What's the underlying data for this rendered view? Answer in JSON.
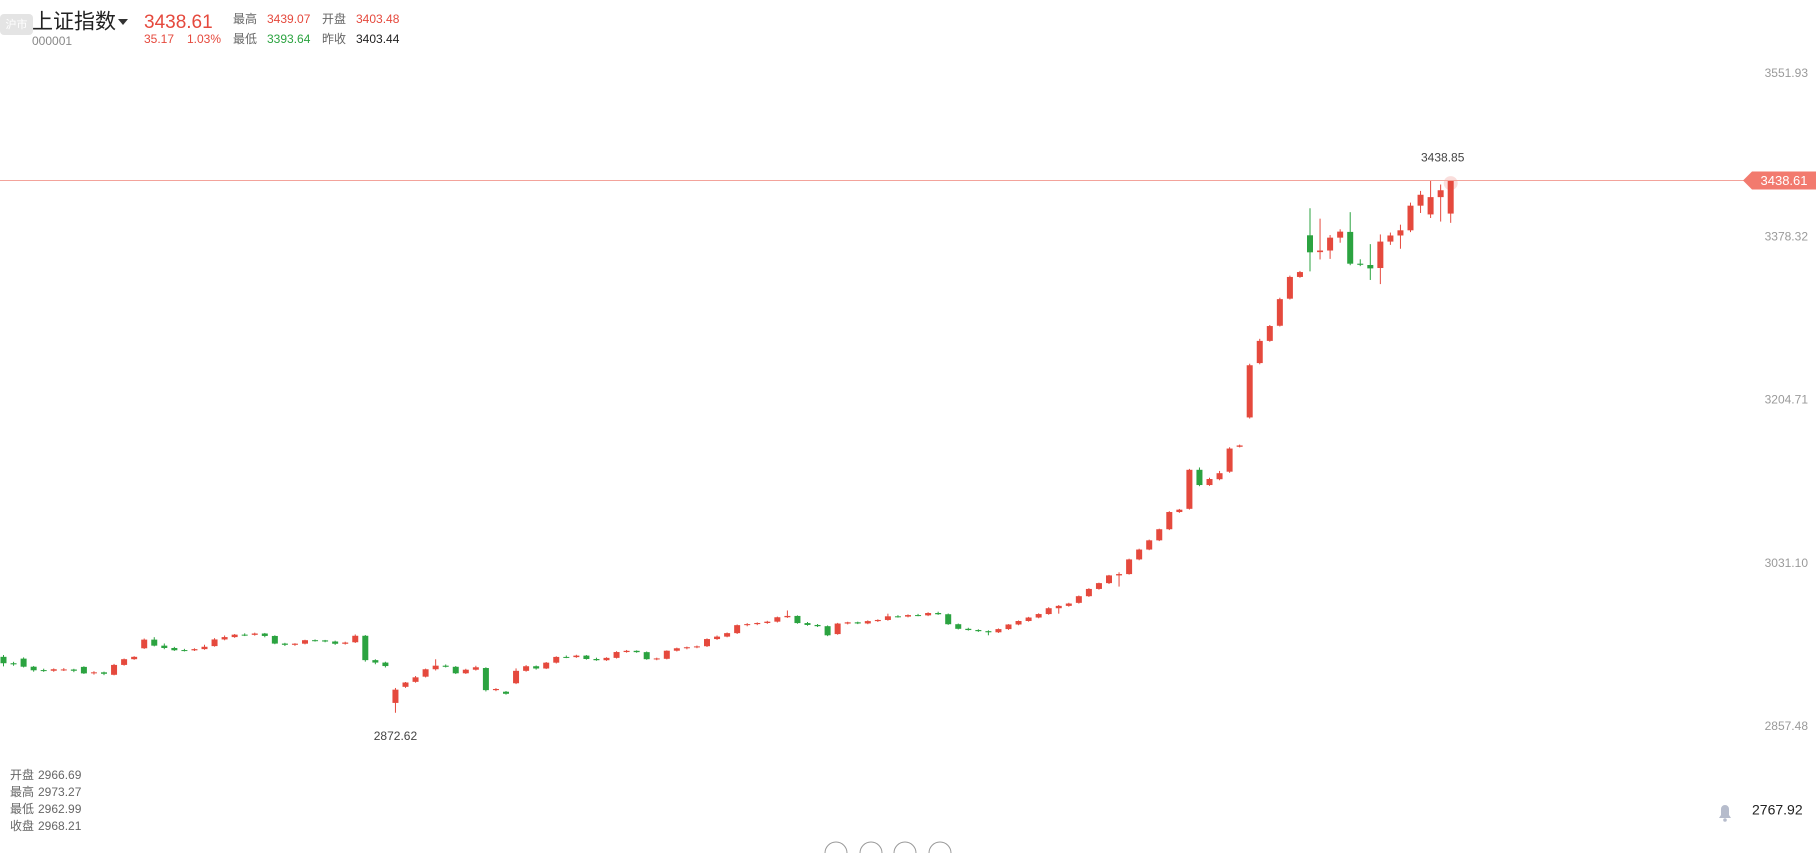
{
  "header": {
    "badge": "沪市",
    "name": "上证指数",
    "code": "000001",
    "price": "3438.61",
    "change": "35.17",
    "change_pct": "1.03%",
    "stats": [
      {
        "label": "最高",
        "value": "3439.07"
      },
      {
        "label": "开盘",
        "value": "3403.48"
      },
      {
        "label": "最低",
        "value": "3393.64"
      },
      {
        "label": "昨收",
        "value": "3403.44"
      }
    ]
  },
  "ohlc_info": [
    {
      "label": "开盘",
      "value": "2966.69"
    },
    {
      "label": "最高",
      "value": "2973.27"
    },
    {
      "label": "最低",
      "value": "2962.99"
    },
    {
      "label": "收盘",
      "value": "2968.21"
    }
  ],
  "bottom_value": "2767.92",
  "chart_data": {
    "type": "candlestick",
    "up_color": "#e5493d",
    "down_color": "#2ba340",
    "price_line_color": "#f3a39b",
    "ylim": [
      2790.48,
      3588.09
    ],
    "yticks": [
      2857.48,
      {
        "value": 3031.1,
        "label": "3031.10"
      },
      3204.71,
      3378.32,
      3551.93
    ],
    "candles": [
      [
        2932.1,
        2934.0,
        2922.0,
        2925.3
      ],
      [
        2925.3,
        2926.8,
        2922.6,
        2924.1
      ],
      [
        2930.2,
        2931.5,
        2920.8,
        2921.6
      ],
      [
        2921.6,
        2922.4,
        2916.3,
        2917.8
      ],
      [
        2918.0,
        2919.5,
        2916.1,
        2917.5
      ],
      [
        2917.3,
        2919.8,
        2916.2,
        2918.9
      ],
      [
        2918.4,
        2920.1,
        2917.0,
        2918.7
      ],
      [
        2918.6,
        2919.4,
        2915.8,
        2917.3
      ],
      [
        2921.4,
        2922.1,
        2913.9,
        2914.5
      ],
      [
        2914.9,
        2916.8,
        2913.2,
        2915.6
      ],
      [
        2915.6,
        2916.4,
        2912.7,
        2914.1
      ],
      [
        2913.0,
        2924.6,
        2912.4,
        2923.5
      ],
      [
        2923.5,
        2930.3,
        2922.7,
        2929.6
      ],
      [
        2929.6,
        2932.8,
        2928.9,
        2932.1
      ],
      [
        2941.2,
        2951.6,
        2940.5,
        2950.4
      ],
      [
        2950.4,
        2953.0,
        2943.2,
        2944.0
      ],
      [
        2944.0,
        2946.3,
        2940.2,
        2941.5
      ],
      [
        2941.5,
        2942.7,
        2938.4,
        2939.1
      ],
      [
        2939.3,
        2940.6,
        2937.8,
        2939.0
      ],
      [
        2939.0,
        2941.2,
        2938.3,
        2940.3
      ],
      [
        2940.3,
        2944.9,
        2939.6,
        2942.8
      ],
      [
        2943.5,
        2952.0,
        2942.9,
        2950.6
      ],
      [
        2950.6,
        2954.8,
        2949.7,
        2953.1
      ],
      [
        2953.1,
        2956.4,
        2952.3,
        2955.7
      ],
      [
        2955.7,
        2957.1,
        2954.2,
        2955.5
      ],
      [
        2955.5,
        2957.8,
        2954.6,
        2956.9
      ],
      [
        2956.9,
        2957.5,
        2952.9,
        2954.3
      ],
      [
        2954.3,
        2955.0,
        2945.5,
        2946.2
      ],
      [
        2946.2,
        2947.0,
        2943.6,
        2944.9
      ],
      [
        2944.9,
        2946.6,
        2943.8,
        2946.1
      ],
      [
        2946.1,
        2950.3,
        2945.4,
        2949.8
      ],
      [
        2949.8,
        2950.6,
        2948.3,
        2949.6
      ],
      [
        2949.6,
        2950.1,
        2947.6,
        2948.4
      ],
      [
        2948.4,
        2949.3,
        2944.8,
        2946.0
      ],
      [
        2946.0,
        2948.2,
        2945.1,
        2947.3
      ],
      [
        2947.6,
        2955.9,
        2946.8,
        2954.5
      ],
      [
        2954.5,
        2955.3,
        2927.0,
        2928.6
      ],
      [
        2928.6,
        2929.5,
        2924.2,
        2926.0
      ],
      [
        2926.0,
        2926.9,
        2920.8,
        2922.3
      ],
      [
        2883.1,
        2899.0,
        2872.62,
        2897.2
      ],
      [
        2900.2,
        2905.4,
        2899.1,
        2904.8
      ],
      [
        2905.5,
        2911.7,
        2904.6,
        2910.3
      ],
      [
        2911.0,
        2919.6,
        2910.2,
        2918.9
      ],
      [
        2918.9,
        2929.5,
        2917.6,
        2922.7
      ],
      [
        2922.7,
        2924.0,
        2920.8,
        2921.5
      ],
      [
        2921.5,
        2922.3,
        2913.8,
        2914.6
      ],
      [
        2914.6,
        2919.4,
        2913.9,
        2918.4
      ],
      [
        2918.4,
        2922.6,
        2917.5,
        2921.0
      ],
      [
        2920.2,
        2921.0,
        2895.3,
        2896.7
      ],
      [
        2896.7,
        2898.8,
        2895.6,
        2897.9
      ],
      [
        2895.0,
        2895.8,
        2891.9,
        2892.8
      ],
      [
        2904.0,
        2919.8,
        2903.1,
        2917.2
      ],
      [
        2917.2,
        2923.3,
        2916.3,
        2922.1
      ],
      [
        2922.1,
        2922.9,
        2918.5,
        2919.7
      ],
      [
        2919.7,
        2926.6,
        2919.1,
        2925.9
      ],
      [
        2925.9,
        2932.7,
        2925.0,
        2932.0
      ],
      [
        2932.0,
        2933.5,
        2930.7,
        2931.8
      ],
      [
        2931.8,
        2934.3,
        2931.0,
        2933.4
      ],
      [
        2933.4,
        2934.0,
        2929.1,
        2929.8
      ],
      [
        2929.8,
        2931.2,
        2927.9,
        2928.5
      ],
      [
        2928.5,
        2931.6,
        2927.8,
        2931.0
      ],
      [
        2931.0,
        2938.1,
        2930.3,
        2937.2
      ],
      [
        2937.2,
        2939.4,
        2936.5,
        2938.5
      ],
      [
        2938.5,
        2939.0,
        2936.4,
        2937.1
      ],
      [
        2937.1,
        2937.8,
        2929.0,
        2929.6
      ],
      [
        2929.6,
        2931.2,
        2928.5,
        2930.4
      ],
      [
        2930.0,
        2939.0,
        2929.4,
        2938.6
      ],
      [
        2938.6,
        2941.9,
        2937.8,
        2941.2
      ],
      [
        2941.2,
        2943.0,
        2940.1,
        2942.3
      ],
      [
        2942.3,
        2944.1,
        2941.3,
        2943.2
      ],
      [
        2943.4,
        2951.7,
        2942.6,
        2951.0
      ],
      [
        2951.0,
        2954.8,
        2950.1,
        2953.6
      ],
      [
        2953.6,
        2958.0,
        2952.9,
        2957.3
      ],
      [
        2957.3,
        2966.5,
        2956.4,
        2965.8
      ],
      [
        2965.8,
        2967.9,
        2964.6,
        2966.9
      ],
      [
        2966.9,
        2968.7,
        2965.8,
        2968.1
      ],
      [
        2968.1,
        2970.4,
        2967.2,
        2969.5
      ],
      [
        2969.5,
        2974.9,
        2968.6,
        2974.2
      ],
      [
        2974.2,
        2981.4,
        2973.5,
        2975.6
      ],
      [
        2975.6,
        2976.2,
        2967.3,
        2968.0
      ],
      [
        2968.0,
        2969.1,
        2965.2,
        2966.0
      ],
      [
        2966.0,
        2967.0,
        2963.8,
        2964.7
      ],
      [
        2964.7,
        2965.5,
        2954.1,
        2955.0
      ],
      [
        2956.3,
        2968.2,
        2955.6,
        2967.5
      ],
      [
        2967.5,
        2969.4,
        2966.6,
        2968.8
      ],
      [
        2968.8,
        2969.5,
        2966.9,
        2967.6
      ],
      [
        2967.6,
        2970.9,
        2966.8,
        2970.1
      ],
      [
        2970.1,
        2972.0,
        2969.2,
        2971.3
      ],
      [
        2971.3,
        2978.0,
        2970.5,
        2975.2
      ],
      [
        2975.2,
        2976.4,
        2973.8,
        2974.9
      ],
      [
        2974.9,
        2977.3,
        2974.0,
        2976.5
      ],
      [
        2976.5,
        2977.8,
        2975.3,
        2976.2
      ],
      [
        2976.2,
        2979.5,
        2975.4,
        2978.7
      ],
      [
        2978.7,
        2980.1,
        2976.7,
        2977.4
      ],
      [
        2977.4,
        2978.2,
        2966.1,
        2966.8
      ],
      [
        2966.8,
        2967.5,
        2961.2,
        2961.9
      ],
      [
        2961.9,
        2963.0,
        2960.0,
        2960.6
      ],
      [
        2960.6,
        2961.4,
        2958.6,
        2959.4
      ],
      [
        2959.4,
        2960.3,
        2955.0,
        2958.2
      ],
      [
        2958.2,
        2962.3,
        2957.5,
        2961.6
      ],
      [
        2961.6,
        2966.9,
        2960.8,
        2966.5
      ],
      [
        2966.5,
        2970.8,
        2965.7,
        2970.2
      ],
      [
        2970.2,
        2974.6,
        2969.5,
        2973.9
      ],
      [
        2973.9,
        2978.4,
        2973.1,
        2977.6
      ],
      [
        2977.6,
        2984.9,
        2976.8,
        2983.8
      ],
      [
        2983.8,
        2987.2,
        2978.0,
        2986.3
      ],
      [
        2986.3,
        2989.6,
        2985.4,
        2988.8
      ],
      [
        2989.5,
        2997.3,
        2988.7,
        2996.6
      ],
      [
        2996.6,
        3005.1,
        2995.8,
        3004.3
      ],
      [
        3004.3,
        3011.0,
        3003.5,
        3010.5
      ],
      [
        3010.5,
        3019.2,
        3009.6,
        3018.7
      ],
      [
        3018.7,
        3022.0,
        3006.8,
        3020.1
      ],
      [
        3020.1,
        3036.5,
        3019.5,
        3035.7
      ],
      [
        3035.7,
        3047.1,
        3034.8,
        3046.2
      ],
      [
        3046.2,
        3056.8,
        3045.5,
        3056.0
      ],
      [
        3056.0,
        3068.4,
        3055.2,
        3067.8
      ],
      [
        3067.8,
        3087.0,
        3066.9,
        3086.1
      ],
      [
        3086.1,
        3089.4,
        3085.2,
        3088.6
      ],
      [
        3089.5,
        3132.0,
        3088.7,
        3131.0
      ],
      [
        3131.0,
        3133.5,
        3113.6,
        3114.8
      ],
      [
        3114.8,
        3122.6,
        3113.9,
        3121.2
      ],
      [
        3121.0,
        3129.8,
        3119.9,
        3127.4
      ],
      [
        3129.0,
        3155.0,
        3127.8,
        3153.6
      ],
      [
        3155.5,
        3157.8,
        3154.8,
        3156.9
      ],
      [
        3186.7,
        3243.8,
        3185.5,
        3242.2
      ],
      [
        3244.5,
        3270.3,
        3243.2,
        3268.1
      ],
      [
        3268.1,
        3285.0,
        3267.2,
        3283.9
      ],
      [
        3284.2,
        3314.0,
        3283.4,
        3312.5
      ],
      [
        3313.0,
        3337.5,
        3312.1,
        3336.1
      ],
      [
        3336.1,
        3342.5,
        3335.2,
        3341.3
      ],
      [
        3380.4,
        3409.2,
        3342.0,
        3362.3
      ],
      [
        3362.5,
        3398.1,
        3354.7,
        3364.2
      ],
      [
        3364.2,
        3380.7,
        3355.3,
        3377.9
      ],
      [
        3377.9,
        3386.8,
        3372.5,
        3384.3
      ],
      [
        3384.0,
        3405.0,
        3348.6,
        3350.2
      ],
      [
        3350.2,
        3354.9,
        3347.6,
        3349.0
      ],
      [
        3348.8,
        3371.0,
        3332.9,
        3345.2
      ],
      [
        3345.6,
        3381.3,
        3328.5,
        3373.7
      ],
      [
        3373.7,
        3383.3,
        3370.2,
        3380.2
      ],
      [
        3380.2,
        3391.7,
        3366.1,
        3385.7
      ],
      [
        3385.7,
        3415.2,
        3383.8,
        3411.9
      ],
      [
        3411.9,
        3427.6,
        3404.1,
        3423.5
      ],
      [
        3402.6,
        3438.85,
        3398.8,
        3421.0
      ],
      [
        3421.0,
        3434.4,
        3395.0,
        3428.3
      ],
      [
        3403.48,
        3439.07,
        3393.64,
        3438.61
      ]
    ]
  }
}
